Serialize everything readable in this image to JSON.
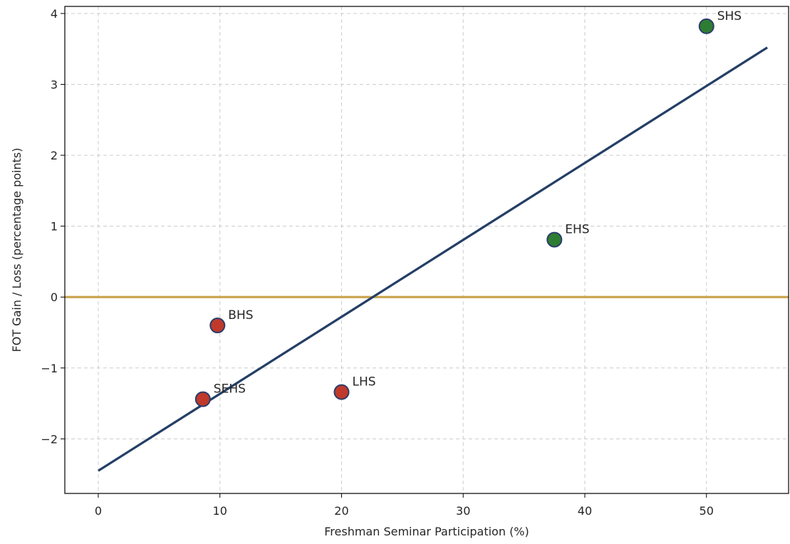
{
  "chart_data": {
    "type": "scatter",
    "title": "",
    "xlabel": "Freshman Seminar Participation (%)",
    "ylabel": "FOT Gain / Loss (percentage points)",
    "xlim": [
      -2.75,
      56.75
    ],
    "ylim": [
      -2.77,
      4.1
    ],
    "x_ticks": [
      0,
      10,
      20,
      30,
      40,
      50
    ],
    "y_ticks": [
      -2,
      -1,
      0,
      1,
      2,
      3,
      4
    ],
    "x_tick_labels": [
      "0",
      "10",
      "20",
      "30",
      "40",
      "50"
    ],
    "y_tick_labels": [
      "−2",
      "−1",
      "0",
      "1",
      "2",
      "3",
      "4"
    ],
    "grid": true,
    "points": [
      {
        "label": "SHS",
        "x": 50.0,
        "y": 3.82,
        "color": "#2e7d32"
      },
      {
        "label": "EHS",
        "x": 37.5,
        "y": 0.81,
        "color": "#2e7d32"
      },
      {
        "label": "BHS",
        "x": 9.8,
        "y": -0.4,
        "color": "#c0392b"
      },
      {
        "label": "LHS",
        "x": 20.0,
        "y": -1.34,
        "color": "#c0392b"
      },
      {
        "label": "SEHS",
        "x": 8.6,
        "y": -1.44,
        "color": "#c0392b"
      }
    ],
    "trend_line": {
      "x": [
        0,
        55
      ],
      "y": [
        -2.45,
        3.52
      ],
      "color": "#243f66"
    },
    "reference_line": {
      "y": 0,
      "color": "#c9a24a"
    },
    "marker_edge_color": "#2b3d6b"
  }
}
